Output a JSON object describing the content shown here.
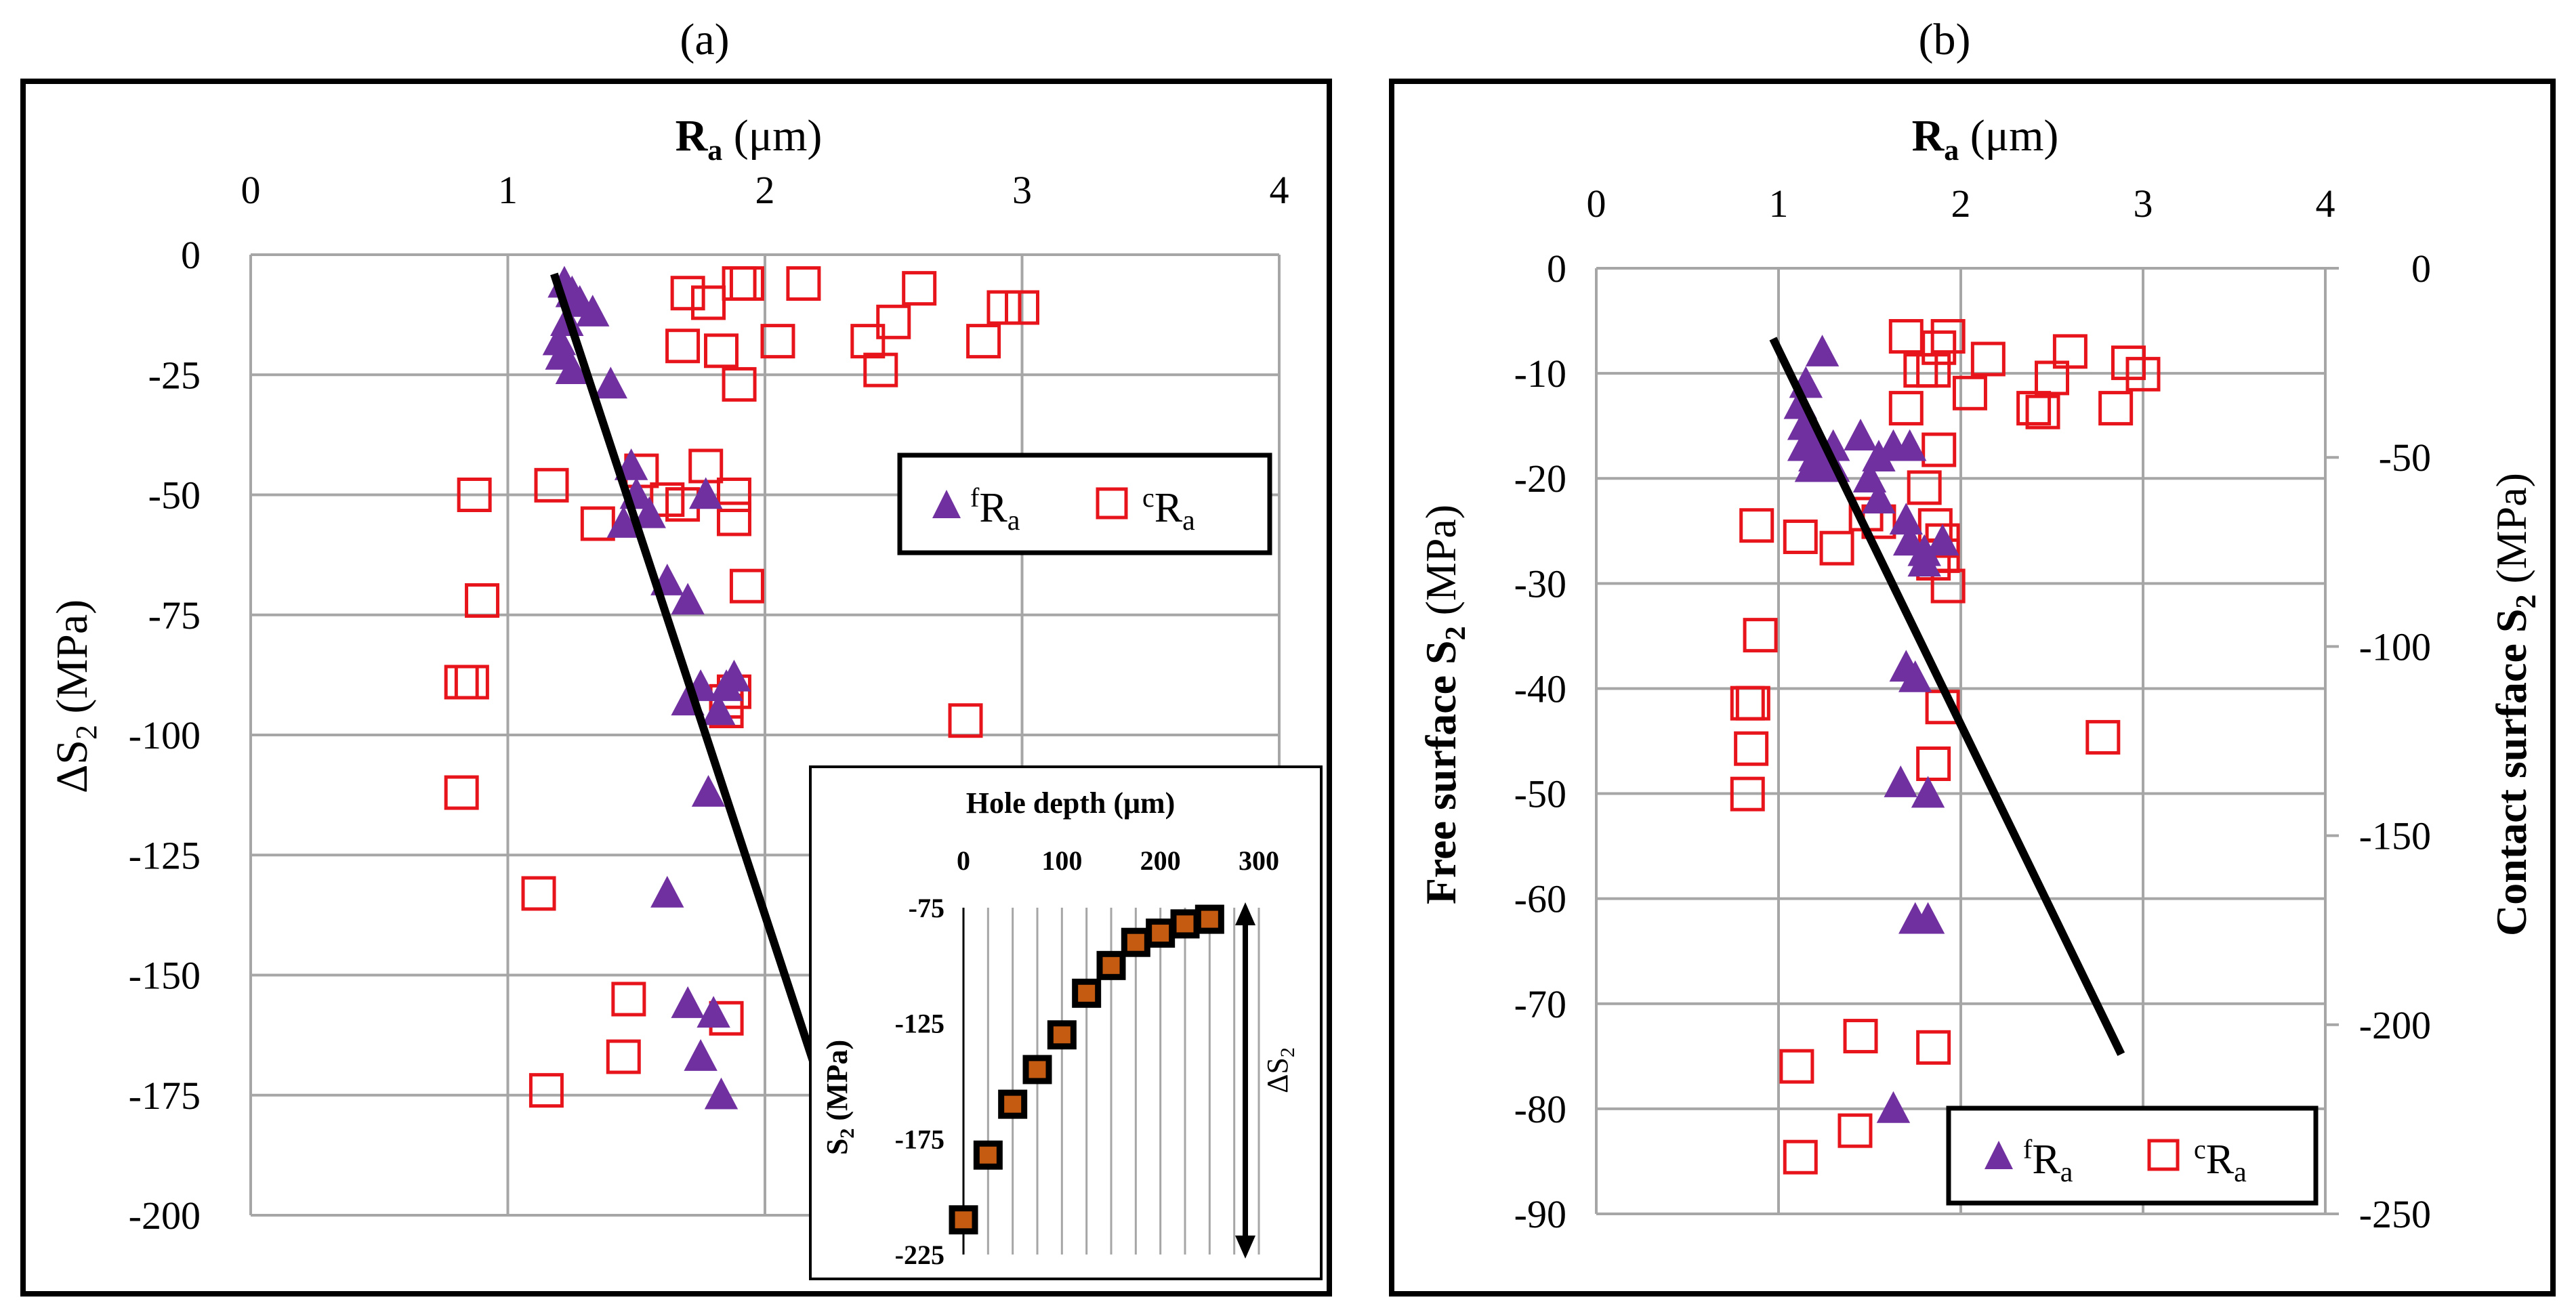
{
  "colors": {
    "purple": "#7030a0",
    "red": "#e8141b",
    "fit": "#000000",
    "grid": "#a6a6a6",
    "inset_marker": "#c55a11"
  },
  "chart_data": [
    {
      "id": "a",
      "panel_label": "(a)",
      "type": "scatter",
      "x_label": {
        "main": "R",
        "sub": "a",
        "unit": " (μm)"
      },
      "y_label": {
        "main": "ΔS",
        "sub": "2",
        "unit": " (MPa)"
      },
      "xlim": [
        0,
        4
      ],
      "x_ticks": [
        "0",
        "1",
        "2",
        "3",
        "4"
      ],
      "ylim": [
        -200,
        0
      ],
      "y_ticks": [
        "0",
        "-25",
        "-50",
        "-75",
        "-100",
        "-125",
        "-150",
        "-175",
        "-200"
      ],
      "legend": [
        {
          "sup": "f",
          "main": "R",
          "sub": "a"
        },
        {
          "sup": "c",
          "main": "R",
          "sub": "a"
        }
      ],
      "series": [
        {
          "name": "fRa",
          "marker": "triangle",
          "points": [
            [
              1.22,
              -6
            ],
            [
              1.25,
              -8
            ],
            [
              1.28,
              -10
            ],
            [
              1.33,
              -12
            ],
            [
              1.23,
              -14
            ],
            [
              1.2,
              -18
            ],
            [
              1.21,
              -21
            ],
            [
              1.25,
              -24
            ],
            [
              1.4,
              -27
            ],
            [
              1.48,
              -44
            ],
            [
              1.5,
              -50
            ],
            [
              1.55,
              -54
            ],
            [
              1.45,
              -56
            ],
            [
              1.62,
              -68
            ],
            [
              1.7,
              -72
            ],
            [
              1.77,
              -50
            ],
            [
              1.7,
              -93
            ],
            [
              1.75,
              -90
            ],
            [
              1.82,
              -95
            ],
            [
              1.85,
              -90
            ],
            [
              1.88,
              -88
            ],
            [
              1.78,
              -112
            ],
            [
              1.62,
              -133
            ],
            [
              1.7,
              -156
            ],
            [
              1.8,
              -158
            ],
            [
              1.75,
              -167
            ],
            [
              1.83,
              -175
            ]
          ]
        },
        {
          "name": "cRa",
          "marker": "square",
          "points": [
            [
              1.7,
              -8
            ],
            [
              1.78,
              -10
            ],
            [
              1.9,
              -6
            ],
            [
              1.93,
              -6
            ],
            [
              2.15,
              -6
            ],
            [
              2.6,
              -7
            ],
            [
              2.93,
              -11
            ],
            [
              3.0,
              -11
            ],
            [
              2.5,
              -14
            ],
            [
              2.05,
              -18
            ],
            [
              1.68,
              -19
            ],
            [
              1.83,
              -20
            ],
            [
              2.4,
              -18
            ],
            [
              2.45,
              -24
            ],
            [
              2.85,
              -18
            ],
            [
              1.9,
              -27
            ],
            [
              0.87,
              -50
            ],
            [
              1.17,
              -48
            ],
            [
              1.35,
              -56
            ],
            [
              1.52,
              -45
            ],
            [
              1.62,
              -51
            ],
            [
              1.68,
              -52
            ],
            [
              1.77,
              -44
            ],
            [
              1.88,
              -50
            ],
            [
              1.88,
              -55
            ],
            [
              1.93,
              -69
            ],
            [
              0.9,
              -72
            ],
            [
              0.82,
              -89
            ],
            [
              0.86,
              -89
            ],
            [
              1.88,
              -91
            ],
            [
              1.85,
              -93
            ],
            [
              1.85,
              -95
            ],
            [
              2.78,
              -97
            ],
            [
              0.82,
              -112
            ],
            [
              1.12,
              -133
            ],
            [
              1.47,
              -155
            ],
            [
              1.85,
              -159
            ],
            [
              1.45,
              -167
            ],
            [
              1.15,
              -174
            ]
          ]
        }
      ],
      "fit": {
        "x1": 1.18,
        "y1": -4,
        "x2": 2.2,
        "y2": -170
      },
      "inset": {
        "type": "scatter",
        "x_label": "Hole depth (μm)",
        "x_ticks": [
          "0",
          "100",
          "200",
          "300"
        ],
        "xlim": [
          0,
          300
        ],
        "y_label": {
          "main": "S",
          "sub": "2",
          "unit": " (MPa)"
        },
        "y_ticks": [
          "-75",
          "-125",
          "-175",
          "-225"
        ],
        "ylim": [
          -225,
          -75
        ],
        "delta_label": {
          "main": "ΔS",
          "sub": "2"
        },
        "points": [
          [
            0,
            -210
          ],
          [
            25,
            -182
          ],
          [
            50,
            -160
          ],
          [
            75,
            -145
          ],
          [
            100,
            -130
          ],
          [
            125,
            -112
          ],
          [
            150,
            -100
          ],
          [
            175,
            -90
          ],
          [
            200,
            -86
          ],
          [
            225,
            -82
          ],
          [
            250,
            -80
          ]
        ]
      }
    },
    {
      "id": "b",
      "panel_label": "(b)",
      "type": "scatter",
      "x_label": {
        "main": "R",
        "sub": "a",
        "unit": " (μm)"
      },
      "y_label_left": {
        "main": "Free surface S",
        "sub": "2",
        "unit": " (MPa)"
      },
      "y_label_right": {
        "main": "Contact surface S",
        "sub": "2",
        "unit": " (MPa)"
      },
      "xlim": [
        0,
        4
      ],
      "x_ticks": [
        "0",
        "1",
        "2",
        "3",
        "4"
      ],
      "ylim_left": [
        -90,
        0
      ],
      "y_ticks_left": [
        "0",
        "-10",
        "-20",
        "-30",
        "-40",
        "-50",
        "-60",
        "-70",
        "-80",
        "-90"
      ],
      "ylim_right": [
        -250,
        0
      ],
      "y_ticks_right": [
        "0",
        "-50",
        "-100",
        "-150",
        "-200",
        "-250"
      ],
      "legend": [
        {
          "sup": "f",
          "main": "R",
          "sub": "a"
        },
        {
          "sup": "c",
          "main": "R",
          "sub": "a"
        }
      ],
      "series": [
        {
          "name": "fRa",
          "axis": "left",
          "marker": "triangle",
          "points": [
            [
              1.24,
              -8
            ],
            [
              1.15,
              -11
            ],
            [
              1.12,
              -13
            ],
            [
              1.14,
              -15
            ],
            [
              1.2,
              -16
            ],
            [
              1.14,
              -17
            ],
            [
              1.2,
              -18
            ],
            [
              1.3,
              -17
            ],
            [
              1.45,
              -16
            ],
            [
              1.55,
              -18
            ],
            [
              1.63,
              -17
            ],
            [
              1.72,
              -17
            ],
            [
              1.18,
              -19
            ],
            [
              1.25,
              -18
            ],
            [
              1.3,
              -19
            ],
            [
              1.5,
              -20
            ],
            [
              1.55,
              -22
            ],
            [
              1.7,
              -24
            ],
            [
              1.72,
              -26
            ],
            [
              1.8,
              -27
            ],
            [
              1.8,
              -28
            ],
            [
              1.9,
              -26
            ],
            [
              1.7,
              -38
            ],
            [
              1.75,
              -39
            ],
            [
              1.67,
              -49
            ],
            [
              1.82,
              -50
            ],
            [
              1.75,
              -62
            ],
            [
              1.82,
              -62
            ],
            [
              1.63,
              -80
            ]
          ]
        },
        {
          "name": "cRa",
          "axis": "right",
          "marker": "square",
          "points": [
            [
              1.7,
              -18
            ],
            [
              1.93,
              -18
            ],
            [
              1.88,
              -21
            ],
            [
              1.78,
              -27
            ],
            [
              1.85,
              -27
            ],
            [
              2.15,
              -24
            ],
            [
              2.05,
              -33
            ],
            [
              2.6,
              -22
            ],
            [
              2.92,
              -25
            ],
            [
              3.0,
              -28
            ],
            [
              2.4,
              -37
            ],
            [
              2.45,
              -38
            ],
            [
              2.5,
              -29
            ],
            [
              2.85,
              -37
            ],
            [
              1.7,
              -37
            ],
            [
              1.88,
              -48
            ],
            [
              1.8,
              -58
            ],
            [
              1.86,
              -68
            ],
            [
              1.9,
              -72
            ],
            [
              1.9,
              -76
            ],
            [
              1.93,
              -84
            ],
            [
              0.88,
              -68
            ],
            [
              1.12,
              -71
            ],
            [
              1.32,
              -74
            ],
            [
              1.48,
              -65
            ],
            [
              1.55,
              -67
            ],
            [
              1.85,
              -78
            ],
            [
              0.9,
              -97
            ],
            [
              0.83,
              -115
            ],
            [
              0.86,
              -115
            ],
            [
              0.85,
              -127
            ],
            [
              1.9,
              -116
            ],
            [
              1.85,
              -131
            ],
            [
              2.78,
              -124
            ],
            [
              0.83,
              -139
            ],
            [
              1.1,
              -211
            ],
            [
              1.45,
              -203
            ],
            [
              1.85,
              -206
            ],
            [
              1.42,
              -228
            ],
            [
              1.12,
              -235
            ]
          ]
        }
      ],
      "fit": {
        "x1": 0.97,
        "y1": -6.7,
        "x2": 2.88,
        "y2": -74.8
      }
    }
  ]
}
